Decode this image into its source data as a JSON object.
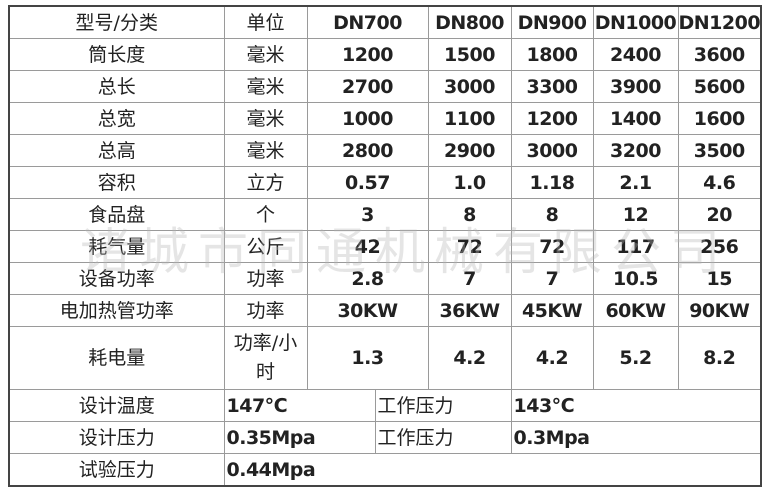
{
  "header": {
    "label": "型号/分类",
    "unit": "单位",
    "models": [
      "DN700",
      "DN800",
      "DN900",
      "DN1000",
      "DN1200"
    ]
  },
  "rows": [
    {
      "label": "筒长度",
      "unit": "毫米",
      "values": [
        "1200",
        "1500",
        "1800",
        "2400",
        "3600"
      ]
    },
    {
      "label": "总长",
      "unit": "毫米",
      "values": [
        "2700",
        "3000",
        "3300",
        "3900",
        "5600"
      ]
    },
    {
      "label": "总宽",
      "unit": "毫米",
      "values": [
        "1000",
        "1100",
        "1200",
        "1400",
        "1600"
      ]
    },
    {
      "label": "总高",
      "unit": "毫米",
      "values": [
        "2800",
        "2900",
        "3000",
        "3200",
        "3500"
      ]
    },
    {
      "label": "容积",
      "unit": "立方",
      "values": [
        "0.57",
        "1.0",
        "1.18",
        "2.1",
        "4.6"
      ]
    },
    {
      "label": "食品盘",
      "unit": "个",
      "values": [
        "3",
        "8",
        "8",
        "12",
        "20"
      ]
    },
    {
      "label": "耗气量",
      "unit": "公斤",
      "values": [
        "42",
        "72",
        "72",
        "117",
        "256"
      ]
    },
    {
      "label": "设备功率",
      "unit": "功率",
      "values": [
        "2.8",
        "7",
        "7",
        "10.5",
        "15"
      ]
    },
    {
      "label": "电加热管功率",
      "unit": "功率",
      "values": [
        "30KW",
        "36KW",
        "45KW",
        "60KW",
        "90KW"
      ]
    },
    {
      "label": "耗电量",
      "unit": "功率/小时",
      "values": [
        "1.3",
        "4.2",
        "4.2",
        "5.2",
        "8.2"
      ]
    }
  ],
  "design": {
    "temp_label": "设计温度",
    "temp_value": "147℃",
    "work_temp_label": "工作压力",
    "work_temp_value": "143℃",
    "pressure_label": "设计压力",
    "pressure_value": "0.35Mpa",
    "work_pressure_label": "工作压力",
    "work_pressure_value": "0.3Mpa",
    "test_label": "试验压力",
    "test_value": "0.44Mpa"
  },
  "watermark": "诸城市同通机械有限公司"
}
